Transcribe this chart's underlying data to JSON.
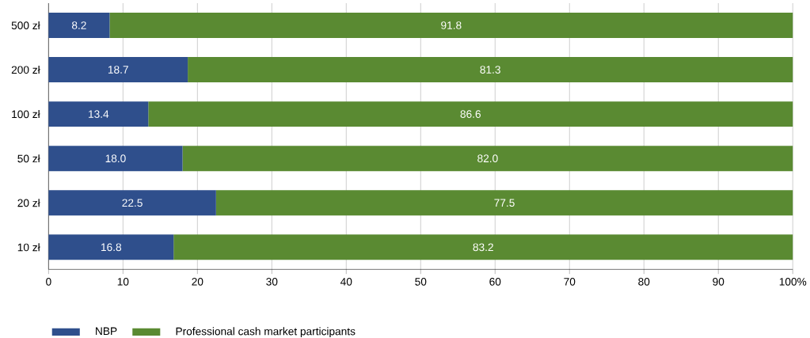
{
  "chart_data": {
    "type": "bar",
    "orientation": "horizontal",
    "stacked": true,
    "categories": [
      "500 zł",
      "200 zł",
      "100 zł",
      "50 zł",
      "20 zł",
      "10 zł"
    ],
    "series": [
      {
        "name": "NBP",
        "color": "#2f4f8c",
        "values": [
          8.2,
          18.7,
          13.4,
          18.0,
          22.5,
          16.8
        ],
        "value_labels": [
          "8.2",
          "18.7",
          "13.4",
          "18.0",
          "22.5",
          "16.8"
        ]
      },
      {
        "name": "Professional cash market participants",
        "color": "#5a8a32",
        "values": [
          91.8,
          81.3,
          86.6,
          82.0,
          77.5,
          83.2
        ],
        "value_labels": [
          "91.8",
          "81.3",
          "86.6",
          "82.0",
          "77.5",
          "83.2"
        ]
      }
    ],
    "xlim": [
      0,
      100
    ],
    "xticks": [
      0,
      10,
      20,
      30,
      40,
      50,
      60,
      70,
      80,
      90,
      {
        "value": 100,
        "label": "100%"
      }
    ],
    "grid": "x",
    "legend": "bottom left"
  }
}
